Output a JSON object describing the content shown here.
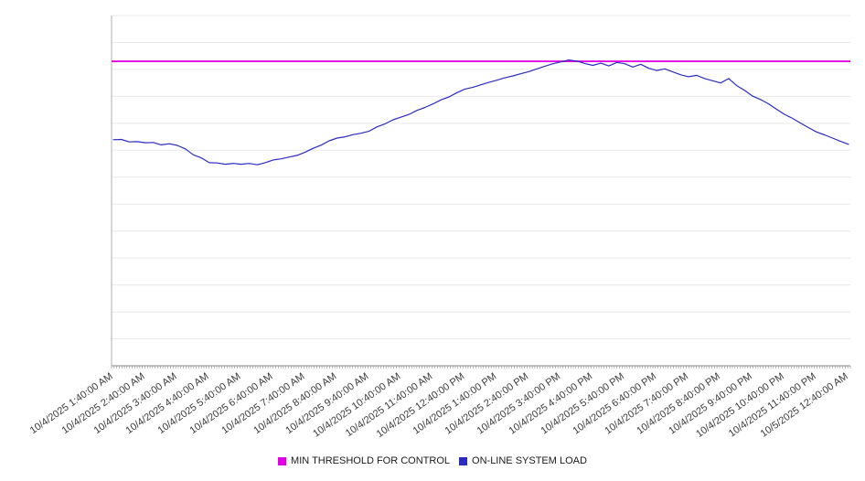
{
  "chart_data": {
    "type": "line",
    "title": "",
    "xlabel": "",
    "ylabel": "",
    "ylim": [
      0,
      130
    ],
    "grid_step": 10,
    "grid": true,
    "legend_position": "bottom",
    "x_tick_labels": [
      "10/4/2025 1:40:00 AM",
      "10/4/2025 2:40:00 AM",
      "10/4/2025 3:40:00 AM",
      "10/4/2025 4:40:00 AM",
      "10/4/2025 5:40:00 AM",
      "10/4/2025 6:40:00 AM",
      "10/4/2025 7:40:00 AM",
      "10/4/2025 8:40:00 AM",
      "10/4/2025 9:40:00 AM",
      "10/4/2025 10:40:00 AM",
      "10/4/2025 11:40:00 AM",
      "10/4/2025 12:40:00 PM",
      "10/4/2025 1:40:00 PM",
      "10/4/2025 2:40:00 PM",
      "10/4/2025 3:40:00 PM",
      "10/4/2025 4:40:00 PM",
      "10/4/2025 5:40:00 PM",
      "10/4/2025 6:40:00 PM",
      "10/4/2025 7:40:00 PM",
      "10/4/2025 8:40:00 PM",
      "10/4/2025 9:40:00 PM",
      "10/4/2025 10:40:00 PM",
      "10/4/2025 11:40:00 PM",
      "10/5/2025 12:40:00 AM"
    ],
    "series": [
      {
        "name": "MIN THRESHOLD FOR CONTROL",
        "color": "#e400e4",
        "kind": "constant",
        "value": 113
      },
      {
        "name": "ON-LINE SYSTEM LOAD",
        "color": "#2b2bc0",
        "kind": "points",
        "x_start": 0,
        "x_step": 0.25,
        "values": [
          83.9,
          84.0,
          83.1,
          83.2,
          82.8,
          82.9,
          82.0,
          82.4,
          81.8,
          80.5,
          78.3,
          77.2,
          75.4,
          75.3,
          74.8,
          75.1,
          74.8,
          75.1,
          74.6,
          75.4,
          76.4,
          76.8,
          77.5,
          78.1,
          79.3,
          80.7,
          81.9,
          83.5,
          84.5,
          85.0,
          85.8,
          86.3,
          87.1,
          88.7,
          89.8,
          91.3,
          92.3,
          93.3,
          94.8,
          95.9,
          97.2,
          98.7,
          99.8,
          101.4,
          102.7,
          103.4,
          104.3,
          105.2,
          106.0,
          106.9,
          107.6,
          108.4,
          109.2,
          110.2,
          111.2,
          112.1,
          112.8,
          113.5,
          113.1,
          112.2,
          111.5,
          112.3,
          111.3,
          112.6,
          112.1,
          110.9,
          111.9,
          110.4,
          109.6,
          110.2,
          109.1,
          108.0,
          107.3,
          107.8,
          106.6,
          105.8,
          105.0,
          106.6,
          104.0,
          102.2,
          100.1,
          98.8,
          97.2,
          95.2,
          93.3,
          91.8,
          90.1,
          88.4,
          86.8,
          85.7,
          84.5,
          83.3,
          82.2
        ]
      }
    ]
  },
  "legend": {
    "items": [
      {
        "label": "MIN THRESHOLD FOR CONTROL",
        "color": "#e400e4"
      },
      {
        "label": "ON-LINE SYSTEM LOAD",
        "color": "#2b2bc0"
      }
    ]
  },
  "style": {
    "gridline_color": "#e8e8e8",
    "axis_line_color": "#b0b0b0",
    "tick_color": "#8a8a8a",
    "label_color": "#3a3a3a"
  }
}
